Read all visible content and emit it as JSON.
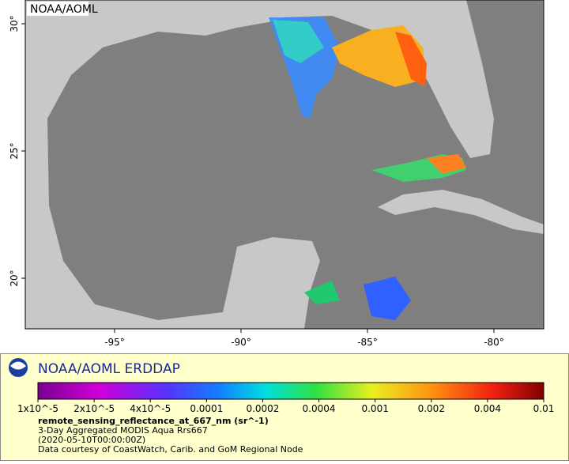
{
  "map": {
    "label": "NOAA/AOML",
    "lat_labels": [
      "30°",
      "25°",
      "20°"
    ],
    "lon_labels": [
      "-95°",
      "-90°",
      "-85°",
      "-80°"
    ]
  },
  "legend": {
    "title": "NOAA/AOML ERDDAP",
    "scale_labels": [
      "1x10^-5",
      "2x10^-5",
      "4x10^-5",
      "0.0001",
      "0.0002",
      "0.0004",
      "0.001",
      "0.002",
      "0.004",
      "0.01"
    ],
    "variable": "remote_sensing_reflectance_at_667_nm (sr^-1)",
    "lines": [
      "3-Day Aggregated MODIS Aqua Rrs667",
      "(2020-05-10T00:00:00Z)",
      "Data courtesy of CoastWatch, Carib. and GoM Regional Node"
    ]
  }
}
